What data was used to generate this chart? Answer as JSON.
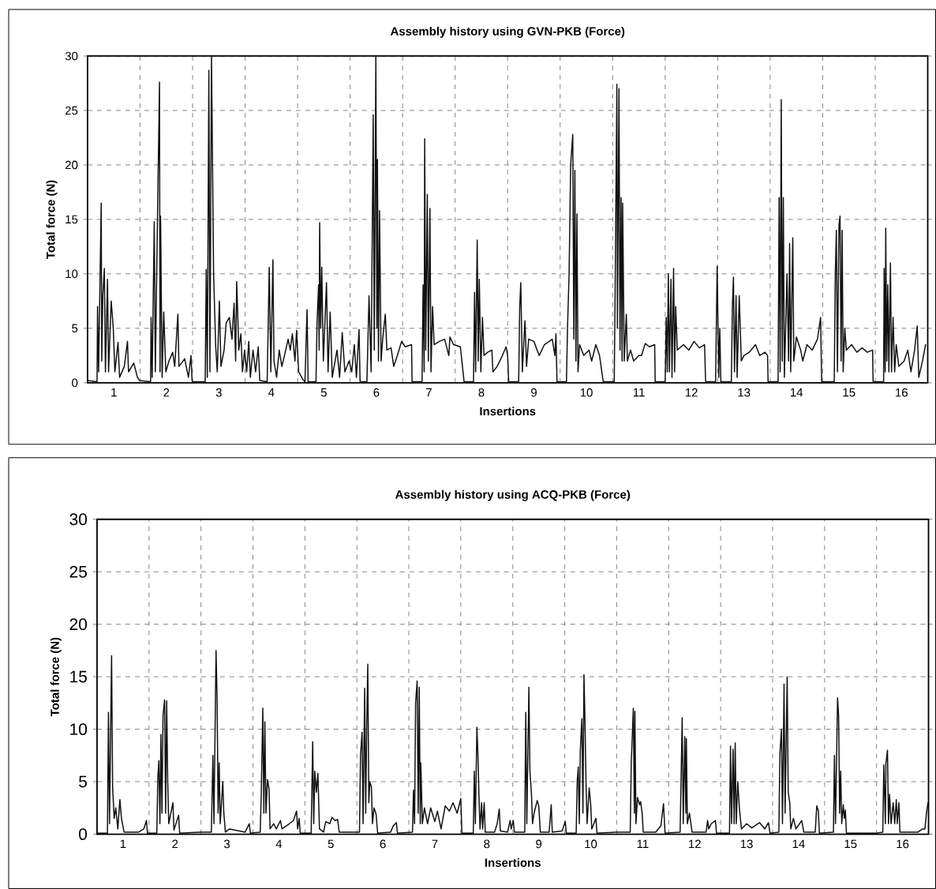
{
  "chart_data": [
    {
      "type": "line",
      "title": "Assembly history using GVN-PKB (Force)",
      "xlabel": "Insertions",
      "ylabel": "Total force (N)",
      "color": "#111111",
      "grid": true,
      "xlim": [
        0.5,
        16.5
      ],
      "ylim": [
        0,
        30
      ],
      "yticks": [
        0,
        5,
        10,
        15,
        20,
        25,
        30
      ],
      "xticks": [
        {
          "value": 1.5,
          "label": null
        },
        {
          "value": 2.5,
          "label": null
        },
        {
          "value": 3.5,
          "label": null
        },
        {
          "value": 4.5,
          "label": null
        },
        {
          "value": 5.5,
          "label": null
        },
        {
          "value": 6.5,
          "label": null
        },
        {
          "value": 7.5,
          "label": null
        },
        {
          "value": 8.5,
          "label": null
        },
        {
          "value": 9.5,
          "label": null
        },
        {
          "value": 10.5,
          "label": null
        },
        {
          "value": 11.5,
          "label": null
        },
        {
          "value": 12.5,
          "label": null
        },
        {
          "value": 13.5,
          "label": null
        },
        {
          "value": 14.5,
          "label": null
        },
        {
          "value": 15.5,
          "label": null
        },
        1,
        2,
        3,
        4,
        5,
        6,
        7,
        8,
        9,
        10,
        11,
        12,
        13,
        14,
        15,
        16
      ],
      "x": [
        0.5,
        0.68,
        0.69,
        0.71,
        0.76,
        0.77,
        0.79,
        0.82,
        0.84,
        0.88,
        0.9,
        0.95,
        0.99,
        1.02,
        1.08,
        1.11,
        1.2,
        1.26,
        1.28,
        1.38,
        1.45,
        1.49,
        1.7,
        1.71,
        1.73,
        1.77,
        1.79,
        1.83,
        1.87,
        1.88,
        1.89,
        1.92,
        1.95,
        1.99,
        2.05,
        2.12,
        2.16,
        2.22,
        2.24,
        2.35,
        2.42,
        2.47,
        2.49,
        2.5,
        2.74,
        2.76,
        2.78,
        2.81,
        2.83,
        2.86,
        2.9,
        2.94,
        2.97,
        3.01,
        3.04,
        3.1,
        3.14,
        3.2,
        3.25,
        3.29,
        3.32,
        3.34,
        3.38,
        3.42,
        3.45,
        3.49,
        3.53,
        3.57,
        3.6,
        3.65,
        3.7,
        3.75,
        3.78,
        3.92,
        3.96,
        3.99,
        4.03,
        4.05,
        4.1,
        4.15,
        4.2,
        4.25,
        4.32,
        4.36,
        4.4,
        4.45,
        4.48,
        4.52,
        4.6,
        4.64,
        4.68,
        4.7,
        4.85,
        4.87,
        4.9,
        4.91,
        4.92,
        4.94,
        4.96,
        4.99,
        5.02,
        5.05,
        5.08,
        5.12,
        5.16,
        5.25,
        5.3,
        5.35,
        5.4,
        5.48,
        5.53,
        5.58,
        5.62,
        5.67,
        5.69,
        5.82,
        5.86,
        5.9,
        5.94,
        5.96,
        5.99,
        6.01,
        6.02,
        6.04,
        6.06,
        6.09,
        6.12,
        6.17,
        6.2,
        6.28,
        6.33,
        6.4,
        6.48,
        6.55,
        6.67,
        6.68,
        6.87,
        6.89,
        6.91,
        6.92,
        6.94,
        6.97,
        6.99,
        7.02,
        7.04,
        7.07,
        7.1,
        7.2,
        7.3,
        7.38,
        7.4,
        7.47,
        7.6,
        7.67,
        7.85,
        7.87,
        7.89,
        7.92,
        7.94,
        7.96,
        7.99,
        8.02,
        8.05,
        8.12,
        8.2,
        8.22,
        8.3,
        8.4,
        8.47,
        8.5,
        8.52,
        8.71,
        8.73,
        8.75,
        8.78,
        8.8,
        8.83,
        8.86,
        8.9,
        9.0,
        9.1,
        9.2,
        9.35,
        9.4,
        9.42,
        9.44,
        9.62,
        9.64,
        9.67,
        9.7,
        9.74,
        9.76,
        9.78,
        9.8,
        9.82,
        9.84,
        9.87,
        9.95,
        10.05,
        10.1,
        10.18,
        10.25,
        10.32,
        10.49,
        10.53,
        10.55,
        10.58,
        10.59,
        10.62,
        10.64,
        10.66,
        10.68,
        10.69,
        10.72,
        10.76,
        10.78,
        10.84,
        10.9,
        11.0,
        11.05,
        11.12,
        11.2,
        11.3,
        11.31,
        11.4,
        11.5,
        11.52,
        11.54,
        11.56,
        11.58,
        11.61,
        11.63,
        11.66,
        11.68,
        11.7,
        11.73,
        11.85,
        11.95,
        12.05,
        12.15,
        12.25,
        12.27,
        12.46,
        12.49,
        12.52,
        12.54,
        12.56,
        12.76,
        12.78,
        12.8,
        12.82,
        12.85,
        12.87,
        12.91,
        12.95,
        13.0,
        13.1,
        13.22,
        13.3,
        13.4,
        13.45,
        13.46,
        13.65,
        13.67,
        13.69,
        13.71,
        13.73,
        13.75,
        13.77,
        13.82,
        13.85,
        13.87,
        13.89,
        13.93,
        13.95,
        14.0,
        14.08,
        14.12,
        14.2,
        14.3,
        14.4,
        14.46,
        14.48,
        14.72,
        14.74,
        14.76,
        14.78,
        14.81,
        14.83,
        14.85,
        14.87,
        14.89,
        14.92,
        14.95,
        15.05,
        15.15,
        15.25,
        15.35,
        15.45,
        15.46,
        15.66,
        15.67,
        15.69,
        15.7,
        15.72,
        15.74,
        15.76,
        15.79,
        15.81,
        15.84,
        15.87,
        15.9,
        15.95,
        16.05,
        16.12,
        16.18,
        16.25,
        16.3,
        16.33,
        16.4,
        16.46
      ],
      "values": [
        0.2,
        0.1,
        7,
        1,
        16.5,
        2,
        8,
        10.5,
        1,
        9.5,
        1,
        7.5,
        5,
        1,
        3.7,
        0.5,
        1.5,
        3.8,
        1,
        1.8,
        0.5,
        0.2,
        0.1,
        6,
        0.5,
        14.8,
        1,
        14.5,
        27.6,
        1,
        15.3,
        0.5,
        6.5,
        1,
        2,
        2.8,
        1.5,
        6.3,
        1.5,
        2.2,
        0.5,
        2.5,
        0.2,
        0.1,
        0.1,
        10.4,
        0.5,
        28.7,
        1,
        30,
        10,
        3.3,
        1,
        7.5,
        1.5,
        3,
        5.5,
        6,
        4,
        7.3,
        2,
        9.3,
        3,
        4.5,
        1,
        3,
        1,
        3.8,
        0.5,
        3,
        1,
        3.3,
        0.2,
        0.1,
        10.6,
        1,
        11.3,
        2,
        0.5,
        3,
        1.5,
        2.5,
        4,
        3,
        4.5,
        2,
        4.8,
        1,
        0.3,
        0.1,
        6.7,
        0.1,
        0.1,
        5.5,
        9,
        3,
        14.7,
        5,
        10.6,
        2,
        5.5,
        9.2,
        1,
        6.5,
        0.5,
        3,
        0.5,
        4.6,
        1,
        2,
        1,
        3.5,
        0.5,
        4.9,
        0.1,
        0.1,
        8,
        1,
        24.6,
        3,
        30,
        5,
        20.5,
        2,
        15.8,
        2,
        4,
        6.3,
        3,
        3.2,
        1.5,
        2.5,
        3.8,
        3.3,
        3.5,
        0.1,
        0.1,
        9,
        1,
        22.4,
        3,
        17.3,
        2,
        16,
        1,
        7,
        3.5,
        3.8,
        4,
        2.5,
        4.2,
        3.5,
        3.3,
        0.1,
        0.1,
        8.3,
        1,
        13.1,
        2,
        9.5,
        1,
        6,
        2.5,
        2.8,
        3,
        1,
        1.5,
        2.5,
        3.3,
        2.5,
        0.1,
        0.1,
        7,
        9.2,
        1,
        3,
        5.7,
        1.5,
        4,
        3.8,
        2.5,
        3.5,
        4,
        2.5,
        4.5,
        0.1,
        0.1,
        5,
        10,
        20,
        22.8,
        4,
        19.5,
        2,
        15.5,
        1,
        3.5,
        2.5,
        3,
        2,
        3.5,
        2.5,
        0.1,
        0.1,
        0.1,
        10,
        27.4,
        5,
        27,
        3,
        17,
        2,
        16.5,
        2,
        6.3,
        2,
        3,
        2,
        2.5,
        2.5,
        3.6,
        3.3,
        3.5,
        0.1,
        0.1,
        0.1,
        6,
        1,
        10,
        1,
        9.5,
        0.5,
        10.5,
        1,
        7,
        3,
        3.5,
        3,
        3.8,
        3.2,
        3.5,
        0.1,
        0.1,
        10.7,
        0.5,
        5,
        0.1,
        0.1,
        7,
        9.7,
        1,
        8,
        0.5,
        8,
        2,
        2.5,
        2.8,
        3.5,
        2.5,
        2.8,
        2.5,
        0.1,
        0.1,
        17,
        1,
        26,
        2,
        17,
        0.5,
        10,
        2,
        12.8,
        1,
        13.3,
        2,
        4.2,
        3,
        2,
        3.5,
        3,
        4,
        6,
        0.1,
        0.1,
        10,
        14,
        1,
        14.5,
        15.3,
        2,
        14,
        1,
        5,
        3,
        3.5,
        2.8,
        3.2,
        2.8,
        3,
        0.1,
        0.1,
        10.5,
        1,
        14.2,
        2,
        9,
        1,
        11,
        1,
        6,
        1,
        3.5,
        1.5,
        2,
        3,
        1,
        3,
        5.2,
        0.5,
        2,
        3.5
      ]
    },
    {
      "type": "line",
      "title": "Assembly history using ACQ-PKB (Force)",
      "xlabel": "Insertions",
      "ylabel": "Total force (N)",
      "color": "#111111",
      "grid": true,
      "xlim": [
        0.5,
        16.5
      ],
      "ylim": [
        0,
        30
      ],
      "yticks": [
        0,
        5,
        10,
        15,
        20,
        25,
        30
      ],
      "xticks": [
        {
          "value": 1.5,
          "label": null
        },
        {
          "value": 2.5,
          "label": null
        },
        {
          "value": 3.5,
          "label": null
        },
        {
          "value": 4.5,
          "label": null
        },
        {
          "value": 5.5,
          "label": null
        },
        {
          "value": 6.5,
          "label": null
        },
        {
          "value": 7.5,
          "label": null
        },
        {
          "value": 8.5,
          "label": null
        },
        {
          "value": 9.5,
          "label": null
        },
        {
          "value": 10.5,
          "label": null
        },
        {
          "value": 11.5,
          "label": null
        },
        {
          "value": 12.5,
          "label": null
        },
        {
          "value": 13.5,
          "label": null
        },
        {
          "value": 14.5,
          "label": null
        },
        {
          "value": 15.5,
          "label": null
        },
        1,
        2,
        3,
        4,
        5,
        6,
        7,
        8,
        9,
        10,
        11,
        12,
        13,
        14,
        15,
        16
      ],
      "x": [
        0.5,
        0.7,
        0.72,
        0.74,
        0.78,
        0.8,
        0.83,
        0.86,
        0.9,
        0.94,
        0.97,
        1.02,
        1.3,
        1.4,
        1.45,
        1.47,
        1.65,
        1.67,
        1.69,
        1.71,
        1.73,
        1.75,
        1.77,
        1.8,
        1.82,
        1.84,
        1.86,
        1.88,
        1.96,
        1.98,
        2.07,
        2.09,
        2.49,
        2.7,
        2.73,
        2.75,
        2.79,
        2.81,
        2.83,
        2.85,
        2.87,
        2.92,
        2.94,
        2.97,
        3.05,
        3.35,
        3.43,
        3.45,
        3.64,
        3.66,
        3.69,
        3.71,
        3.73,
        3.75,
        3.78,
        3.81,
        3.83,
        3.9,
        3.95,
        4.03,
        4.06,
        4.2,
        4.28,
        4.34,
        4.36,
        4.39,
        4.41,
        4.62,
        4.65,
        4.67,
        4.69,
        4.72,
        4.75,
        4.78,
        4.86,
        4.9,
        4.98,
        5.02,
        5.08,
        5.13,
        5.16,
        5.45,
        5.55,
        5.57,
        5.6,
        5.62,
        5.65,
        5.67,
        5.69,
        5.71,
        5.73,
        5.75,
        5.78,
        5.8,
        5.83,
        5.87,
        5.9,
        6.15,
        6.2,
        6.26,
        6.28,
        6.57,
        6.59,
        6.61,
        6.63,
        6.66,
        6.68,
        6.7,
        6.72,
        6.73,
        6.76,
        6.8,
        6.86,
        6.92,
        7.0,
        7.05,
        7.12,
        7.2,
        7.28,
        7.35,
        7.43,
        7.5,
        7.52,
        7.74,
        7.76,
        7.78,
        7.81,
        7.83,
        7.85,
        7.87,
        7.9,
        7.92,
        7.95,
        7.97,
        8.15,
        8.2,
        8.24,
        8.26,
        8.4,
        8.45,
        8.47,
        8.51,
        8.53,
        8.73,
        8.75,
        8.77,
        8.81,
        8.83,
        8.86,
        8.88,
        8.91,
        8.97,
        9.0,
        9.03,
        9.2,
        9.24,
        9.26,
        9.45,
        9.51,
        9.53,
        9.72,
        9.74,
        9.76,
        9.78,
        9.8,
        9.83,
        9.85,
        9.87,
        9.89,
        9.91,
        9.93,
        9.97,
        10.0,
        10.02,
        10.1,
        10.12,
        10.49,
        10.76,
        10.78,
        10.82,
        10.84,
        10.85,
        10.87,
        10.9,
        10.94,
        10.96,
        10.99,
        11.01,
        11.25,
        11.35,
        11.4,
        11.43,
        11.72,
        11.74,
        11.76,
        11.78,
        11.81,
        11.83,
        11.84,
        11.86,
        11.9,
        11.95,
        12.22,
        12.25,
        12.27,
        12.32,
        12.4,
        12.42,
        12.67,
        12.69,
        12.71,
        12.74,
        12.76,
        12.78,
        12.8,
        12.83,
        12.86,
        12.9,
        13.0,
        13.1,
        13.25,
        13.35,
        13.42,
        13.45,
        13.62,
        13.64,
        13.67,
        13.69,
        13.72,
        13.74,
        13.78,
        13.8,
        13.83,
        13.85,
        13.9,
        13.95,
        14.06,
        14.1,
        14.32,
        14.35,
        14.38,
        14.4,
        14.67,
        14.69,
        14.71,
        14.75,
        14.77,
        14.79,
        14.81,
        14.83,
        14.86,
        14.88,
        14.9,
        14.92,
        15.5,
        15.62,
        15.64,
        15.67,
        15.68,
        15.71,
        15.73,
        15.75,
        15.78,
        15.82,
        15.85,
        15.88,
        15.9,
        15.93,
        15.95,
        16.3,
        16.38,
        16.43,
        16.46,
        16.49
      ],
      "values": [
        0.1,
        0.1,
        11.6,
        1,
        17,
        4.5,
        1.5,
        2.5,
        0.5,
        3.3,
        1.5,
        0.2,
        0.2,
        0.5,
        1.3,
        0.1,
        0.1,
        5.4,
        7,
        1,
        9.5,
        2,
        11.3,
        12.8,
        2,
        12.7,
        5,
        1,
        3,
        0.4,
        1.8,
        0.1,
        0.2,
        0.2,
        7.5,
        1,
        17.5,
        13,
        2,
        6.8,
        1,
        5,
        2,
        0.2,
        0.5,
        0.2,
        1,
        0.1,
        0.2,
        3.7,
        12,
        2,
        10.7,
        2,
        5.2,
        4.3,
        0.5,
        1,
        0.5,
        1.3,
        0.5,
        1,
        1.3,
        2.2,
        0.5,
        1.5,
        0.1,
        0.1,
        8.8,
        1,
        6,
        4,
        5.8,
        0.5,
        0.2,
        1.2,
        1,
        1.6,
        1.3,
        1.4,
        0.2,
        0.2,
        0.2,
        7.5,
        9.7,
        1,
        13.9,
        2,
        10.5,
        16.2,
        3,
        5,
        4.5,
        1,
        2.5,
        1.9,
        0.1,
        0.2,
        0.8,
        1.1,
        0.1,
        0.2,
        4.2,
        1,
        12.5,
        14.6,
        2,
        14,
        1,
        6.8,
        1,
        2.5,
        1,
        2.5,
        1.2,
        2.2,
        0.5,
        2.7,
        2.2,
        3,
        2,
        3.4,
        0.1,
        0.1,
        6,
        1,
        10.2,
        7.5,
        3.5,
        0.5,
        3,
        0.5,
        3,
        0.2,
        0.2,
        1,
        2.4,
        0.3,
        0.2,
        1.3,
        0.5,
        1.3,
        0.2,
        0.2,
        11.6,
        1,
        14,
        6,
        3.8,
        1,
        2,
        3.2,
        2.7,
        0.2,
        0.2,
        2.8,
        0.2,
        0.3,
        1.2,
        0.1,
        0.1,
        5,
        6.4,
        1,
        8,
        11,
        2,
        15.2,
        10.6,
        4.7,
        1,
        4.4,
        2.8,
        0.5,
        1.5,
        0.1,
        0.2,
        0.2,
        6.8,
        12,
        2,
        11.7,
        1,
        3.5,
        2.8,
        3.1,
        2,
        0.2,
        0.2,
        0.8,
        2.9,
        0.1,
        0.2,
        5.5,
        11.1,
        1,
        9.3,
        2,
        9.1,
        1,
        2,
        0.2,
        0.2,
        1.3,
        0.5,
        1,
        1.3,
        0.1,
        0.1,
        8.4,
        1,
        8.1,
        1,
        8.7,
        1,
        5,
        2.5,
        0.5,
        1,
        0.6,
        1.1,
        0.5,
        1.1,
        0.1,
        0.2,
        7.6,
        10,
        1,
        14.3,
        2,
        15,
        4,
        3,
        0.5,
        1.5,
        0.5,
        1.3,
        0.2,
        0.2,
        2.7,
        2.2,
        0.1,
        0.2,
        7.5,
        1,
        13,
        11.3,
        2,
        6,
        1,
        2.8,
        1.5,
        2.3,
        0.1,
        0.1,
        0.2,
        6.6,
        1,
        6.7,
        8,
        1,
        3.8,
        1,
        3,
        1,
        3.3,
        1,
        3,
        0.2,
        0.2,
        0.5,
        0.5,
        2,
        3
      ]
    }
  ]
}
